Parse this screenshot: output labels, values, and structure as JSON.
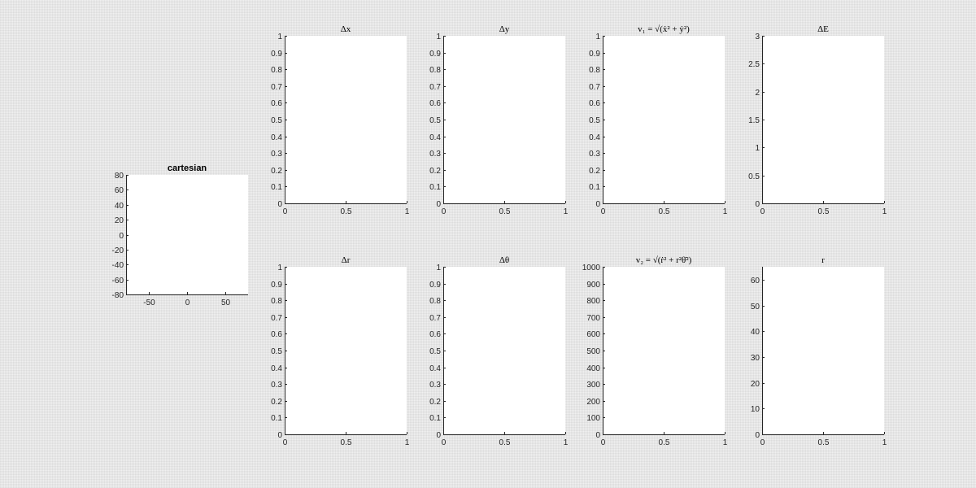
{
  "colors": {
    "background": "#f0f0f0",
    "axes_face": "#ffffff",
    "axis_line": "#262626"
  },
  "chart_data": [
    {
      "id": "cartesian",
      "type": "line",
      "title": "cartesian",
      "title_style": "plain",
      "series": [],
      "xlim": [
        -80,
        80
      ],
      "ylim": [
        -80,
        80
      ],
      "xticks": [
        -50,
        0,
        50
      ],
      "yticks": [
        -80,
        -60,
        -40,
        -20,
        0,
        20,
        40,
        60,
        80
      ],
      "xtick_labels": [
        "-50",
        "0",
        "50"
      ],
      "ytick_labels": [
        "-80",
        "-60",
        "-40",
        "-20",
        "0",
        "20",
        "40",
        "60",
        "80"
      ],
      "grid": false
    },
    {
      "id": "delta-x",
      "type": "line",
      "title": "Δx",
      "title_style": "math",
      "series": [],
      "xlim": [
        0,
        1
      ],
      "ylim": [
        0,
        1
      ],
      "xticks": [
        0,
        0.5,
        1
      ],
      "yticks": [
        0,
        0.1,
        0.2,
        0.3,
        0.4,
        0.5,
        0.6,
        0.7,
        0.8,
        0.9,
        1
      ],
      "xtick_labels": [
        "0",
        "0.5",
        "1"
      ],
      "ytick_labels": [
        "0",
        "0.1",
        "0.2",
        "0.3",
        "0.4",
        "0.5",
        "0.6",
        "0.7",
        "0.8",
        "0.9",
        "1"
      ],
      "grid": false
    },
    {
      "id": "delta-y",
      "type": "line",
      "title": "Δy",
      "title_style": "math",
      "series": [],
      "xlim": [
        0,
        1
      ],
      "ylim": [
        0,
        1
      ],
      "xticks": [
        0,
        0.5,
        1
      ],
      "yticks": [
        0,
        0.1,
        0.2,
        0.3,
        0.4,
        0.5,
        0.6,
        0.7,
        0.8,
        0.9,
        1
      ],
      "xtick_labels": [
        "0",
        "0.5",
        "1"
      ],
      "ytick_labels": [
        "0",
        "0.1",
        "0.2",
        "0.3",
        "0.4",
        "0.5",
        "0.6",
        "0.7",
        "0.8",
        "0.9",
        "1"
      ],
      "grid": false
    },
    {
      "id": "v1",
      "type": "line",
      "title": "v₁ = √(ẋ² + ẏ²)",
      "title_style": "math",
      "series": [],
      "xlim": [
        0,
        1
      ],
      "ylim": [
        0,
        1
      ],
      "xticks": [
        0,
        0.5,
        1
      ],
      "yticks": [
        0,
        0.1,
        0.2,
        0.3,
        0.4,
        0.5,
        0.6,
        0.7,
        0.8,
        0.9,
        1
      ],
      "xtick_labels": [
        "0",
        "0.5",
        "1"
      ],
      "ytick_labels": [
        "0",
        "0.1",
        "0.2",
        "0.3",
        "0.4",
        "0.5",
        "0.6",
        "0.7",
        "0.8",
        "0.9",
        "1"
      ],
      "grid": false
    },
    {
      "id": "delta-e",
      "type": "line",
      "title": "ΔE",
      "title_style": "math",
      "series": [],
      "xlim": [
        0,
        1
      ],
      "ylim": [
        0,
        3
      ],
      "xticks": [
        0,
        0.5,
        1
      ],
      "yticks": [
        0,
        0.5,
        1,
        1.5,
        2,
        2.5,
        3
      ],
      "xtick_labels": [
        "0",
        "0.5",
        "1"
      ],
      "ytick_labels": [
        "0",
        "0.5",
        "1",
        "1.5",
        "2",
        "2.5",
        "3"
      ],
      "grid": false
    },
    {
      "id": "delta-r",
      "type": "line",
      "title": "Δr",
      "title_style": "math",
      "series": [],
      "xlim": [
        0,
        1
      ],
      "ylim": [
        0,
        1
      ],
      "xticks": [
        0,
        0.5,
        1
      ],
      "yticks": [
        0,
        0.1,
        0.2,
        0.3,
        0.4,
        0.5,
        0.6,
        0.7,
        0.8,
        0.9,
        1
      ],
      "xtick_labels": [
        "0",
        "0.5",
        "1"
      ],
      "ytick_labels": [
        "0",
        "0.1",
        "0.2",
        "0.3",
        "0.4",
        "0.5",
        "0.6",
        "0.7",
        "0.8",
        "0.9",
        "1"
      ],
      "grid": false
    },
    {
      "id": "delta-theta",
      "type": "line",
      "title": "Δθ",
      "title_style": "math",
      "series": [],
      "xlim": [
        0,
        1
      ],
      "ylim": [
        0,
        1
      ],
      "xticks": [
        0,
        0.5,
        1
      ],
      "yticks": [
        0,
        0.1,
        0.2,
        0.3,
        0.4,
        0.5,
        0.6,
        0.7,
        0.8,
        0.9,
        1
      ],
      "xtick_labels": [
        "0",
        "0.5",
        "1"
      ],
      "ytick_labels": [
        "0",
        "0.1",
        "0.2",
        "0.3",
        "0.4",
        "0.5",
        "0.6",
        "0.7",
        "0.8",
        "0.9",
        "1"
      ],
      "grid": false
    },
    {
      "id": "v2",
      "type": "line",
      "title": "v₂ = √(ṙ² + r²θ̇²)",
      "title_style": "math",
      "series": [],
      "xlim": [
        0,
        1
      ],
      "ylim": [
        0,
        1000
      ],
      "xticks": [
        0,
        0.5,
        1
      ],
      "yticks": [
        0,
        100,
        200,
        300,
        400,
        500,
        600,
        700,
        800,
        900,
        1000
      ],
      "xtick_labels": [
        "0",
        "0.5",
        "1"
      ],
      "ytick_labels": [
        "0",
        "100",
        "200",
        "300",
        "400",
        "500",
        "600",
        "700",
        "800",
        "900",
        "1000"
      ],
      "grid": false
    },
    {
      "id": "r",
      "type": "line",
      "title": "r",
      "title_style": "math",
      "series": [],
      "xlim": [
        0,
        1
      ],
      "ylim": [
        0,
        65
      ],
      "xticks": [
        0,
        0.5,
        1
      ],
      "yticks": [
        0,
        10,
        20,
        30,
        40,
        50,
        60
      ],
      "xtick_labels": [
        "0",
        "0.5",
        "1"
      ],
      "ytick_labels": [
        "0",
        "10",
        "20",
        "30",
        "40",
        "50",
        "60"
      ],
      "grid": false
    }
  ]
}
